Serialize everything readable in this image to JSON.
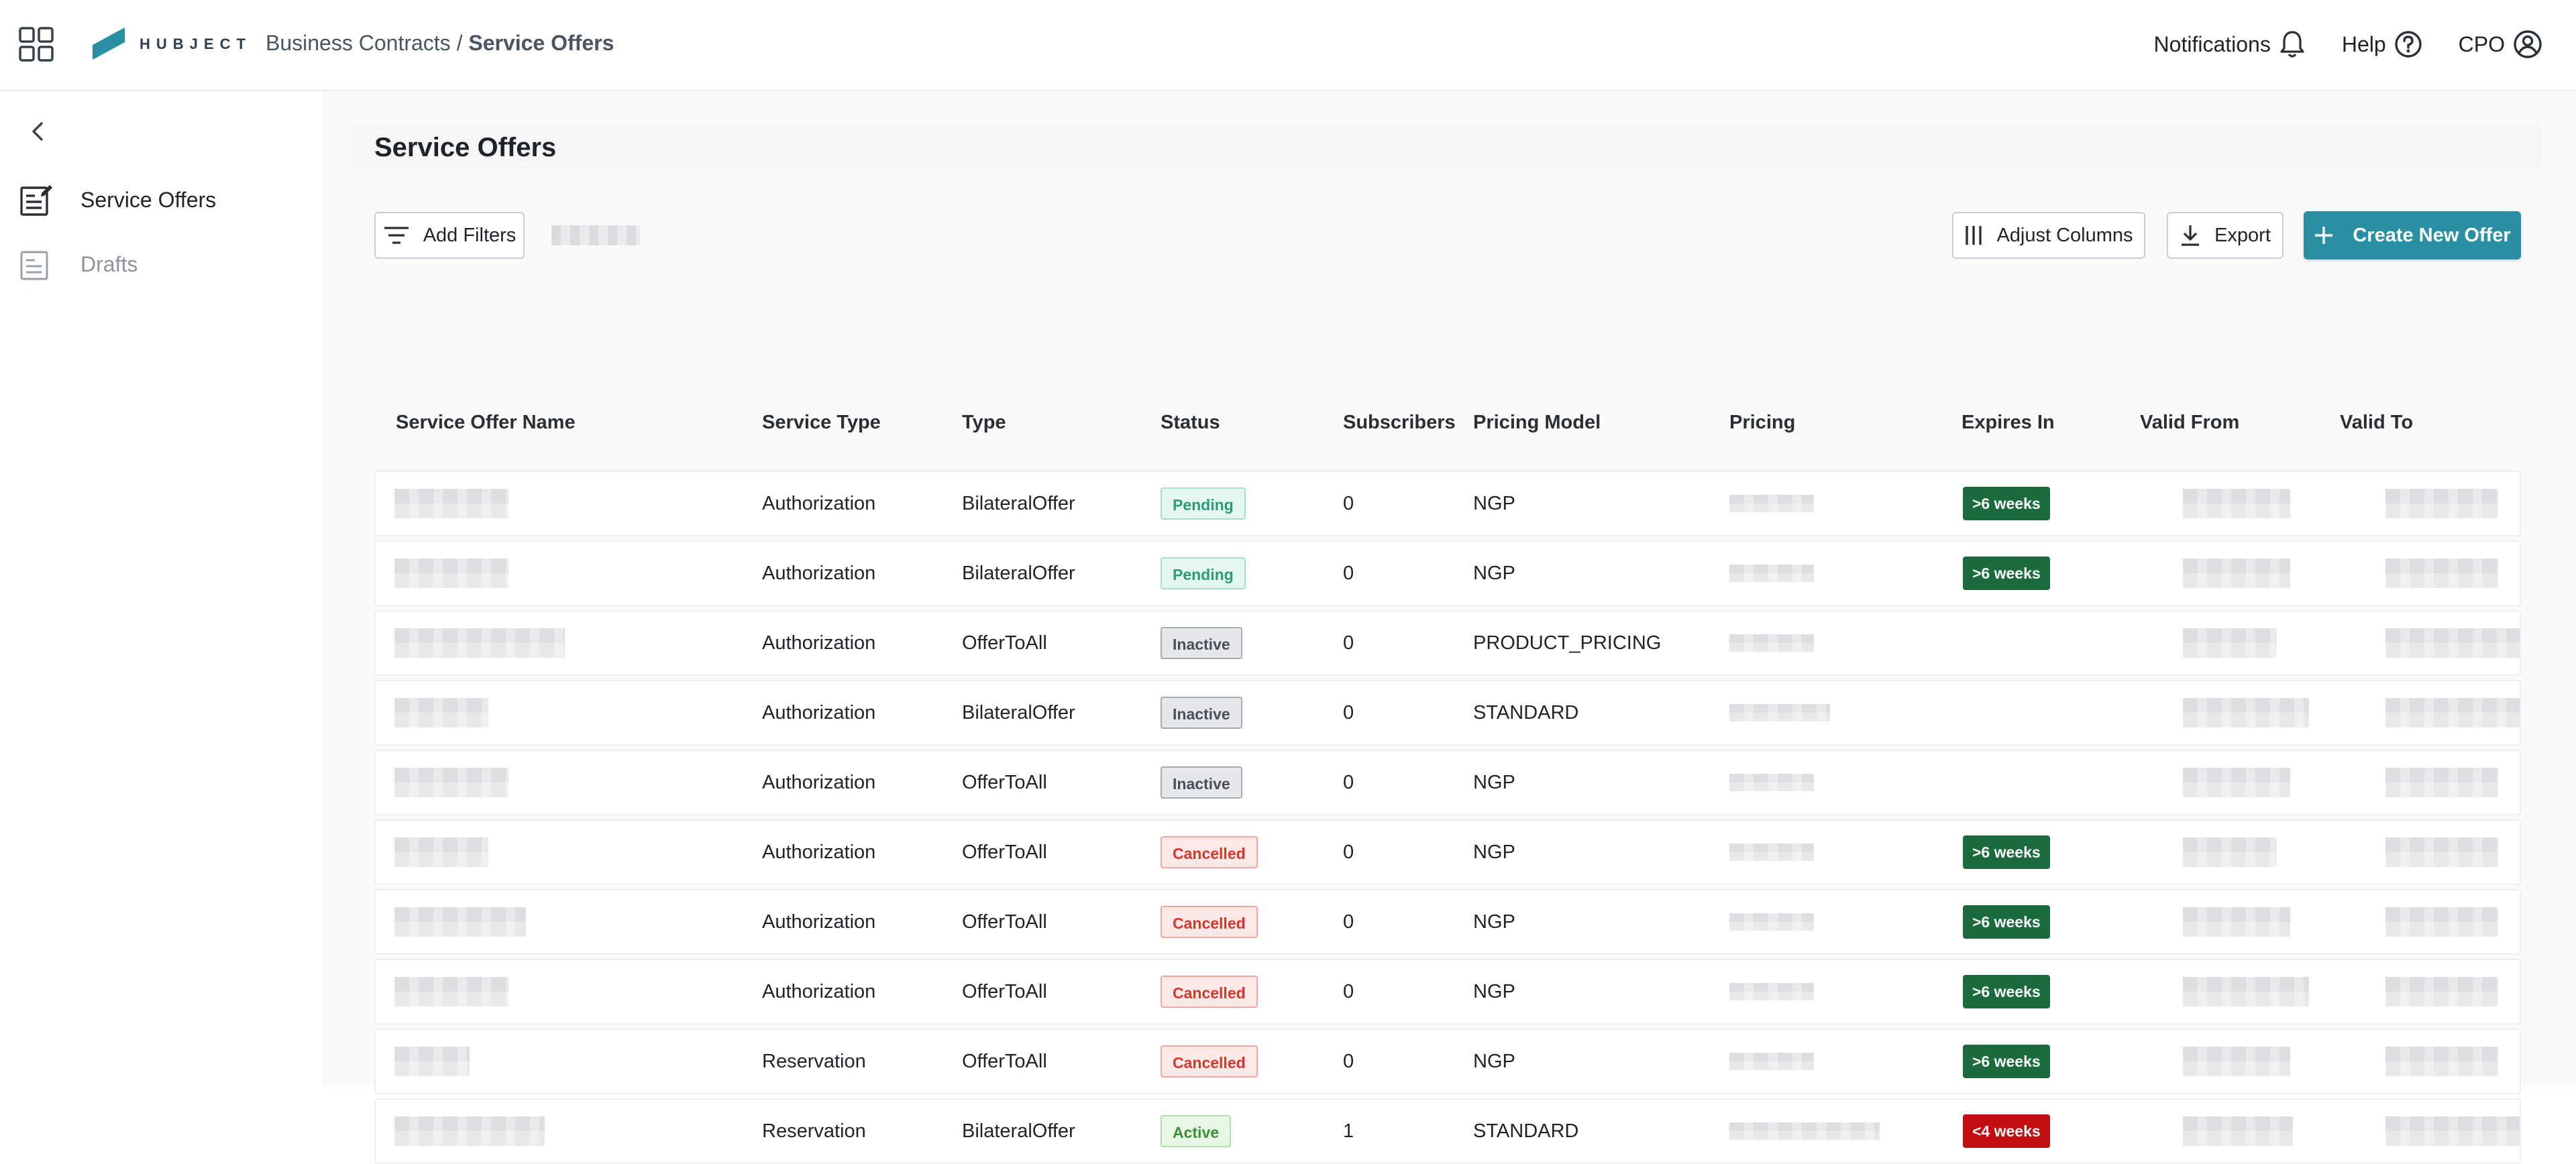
{
  "header": {
    "brand": "HUBJECT",
    "breadcrumb_parent": "Business Contracts",
    "breadcrumb_sep": " / ",
    "breadcrumb_current": "Service Offers",
    "notifications": "Notifications",
    "help": "Help",
    "user": "CPO"
  },
  "sidebar": {
    "items": [
      {
        "label": "Service Offers",
        "icon": "service-offers-icon"
      },
      {
        "label": "Drafts",
        "icon": "drafts-icon"
      }
    ]
  },
  "main": {
    "title": "Service Offers",
    "add_filters": "Add Filters",
    "adjust_columns": "Adjust Columns",
    "export": "Export",
    "create": "Create New Offer",
    "colors": {
      "primary": "#2b8fa3",
      "expires_long": "#1c6b3e",
      "expires_short": "#c10e0e"
    }
  },
  "table": {
    "columns": [
      "Service Offer Name",
      "Service Type",
      "Type",
      "Status",
      "Subscribers",
      "Pricing Model",
      "Pricing",
      "Expires In",
      "Valid From",
      "Valid To"
    ],
    "rows": [
      {
        "service_type": "Authorization",
        "type": "BilateralOffer",
        "status": "Pending",
        "status_class": "pending",
        "subscribers": "0",
        "pricing_model": "NGP",
        "expires": ">6 weeks",
        "expires_class": "long"
      },
      {
        "service_type": "Authorization",
        "type": "BilateralOffer",
        "status": "Pending",
        "status_class": "pending",
        "subscribers": "0",
        "pricing_model": "NGP",
        "expires": ">6 weeks",
        "expires_class": "long"
      },
      {
        "service_type": "Authorization",
        "type": "OfferToAll",
        "status": "Inactive",
        "status_class": "inactive",
        "subscribers": "0",
        "pricing_model": "PRODUCT_PRICING",
        "expires": "",
        "expires_class": ""
      },
      {
        "service_type": "Authorization",
        "type": "BilateralOffer",
        "status": "Inactive",
        "status_class": "inactive",
        "subscribers": "0",
        "pricing_model": "STANDARD",
        "expires": "",
        "expires_class": ""
      },
      {
        "service_type": "Authorization",
        "type": "OfferToAll",
        "status": "Inactive",
        "status_class": "inactive",
        "subscribers": "0",
        "pricing_model": "NGP",
        "expires": "",
        "expires_class": ""
      },
      {
        "service_type": "Authorization",
        "type": "OfferToAll",
        "status": "Cancelled",
        "status_class": "cancelled",
        "subscribers": "0",
        "pricing_model": "NGP",
        "expires": ">6 weeks",
        "expires_class": "long"
      },
      {
        "service_type": "Authorization",
        "type": "OfferToAll",
        "status": "Cancelled",
        "status_class": "cancelled",
        "subscribers": "0",
        "pricing_model": "NGP",
        "expires": ">6 weeks",
        "expires_class": "long"
      },
      {
        "service_type": "Authorization",
        "type": "OfferToAll",
        "status": "Cancelled",
        "status_class": "cancelled",
        "subscribers": "0",
        "pricing_model": "NGP",
        "expires": ">6 weeks",
        "expires_class": "long"
      },
      {
        "service_type": "Reservation",
        "type": "OfferToAll",
        "status": "Cancelled",
        "status_class": "cancelled",
        "subscribers": "0",
        "pricing_model": "NGP",
        "expires": ">6 weeks",
        "expires_class": "long"
      },
      {
        "service_type": "Reservation",
        "type": "BilateralOffer",
        "status": "Active",
        "status_class": "active",
        "subscribers": "1",
        "pricing_model": "STANDARD",
        "expires": "<4 weeks",
        "expires_class": "short"
      }
    ]
  }
}
